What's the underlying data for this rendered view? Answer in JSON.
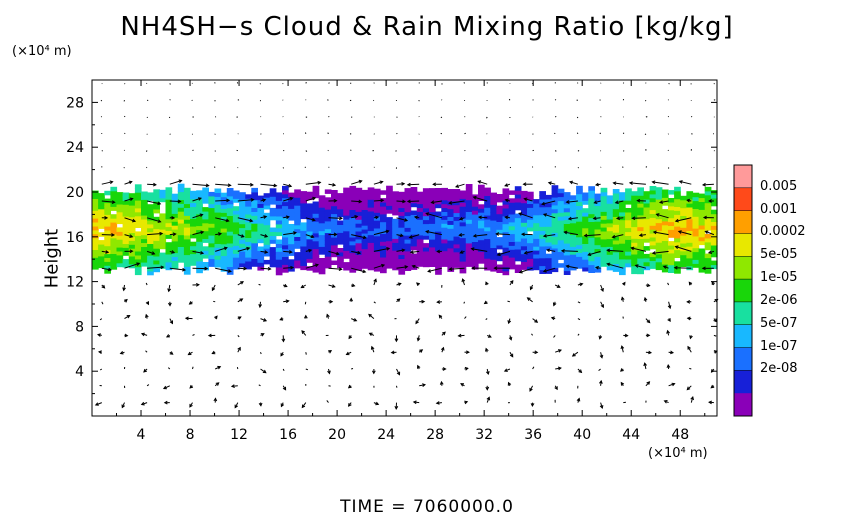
{
  "chart_data": {
    "type": "heatmap",
    "title": "NH4SH−s Cloud & Rain Mixing Ratio [kg/kg]",
    "ylabel": "Height",
    "y_unit": "(×10⁴ m)",
    "x_unit": "(×10⁴ m)",
    "xlim": [
      0,
      51
    ],
    "ylim": [
      0,
      30
    ],
    "xticks": [
      "4",
      "8",
      "12",
      "16",
      "20",
      "24",
      "28",
      "32",
      "36",
      "40",
      "44",
      "48"
    ],
    "yticks": [
      "4",
      "8",
      "12",
      "16",
      "20",
      "24",
      "28"
    ],
    "colorbar": {
      "labels": [
        "0.005",
        "0.001",
        "0.0002",
        "5e-05",
        "1e-05",
        "2e-06",
        "5e-07",
        "1e-07",
        "2e-08"
      ],
      "colors": [
        "#ff9a9a",
        "#ff4a1a",
        "#ff9f00",
        "#e8e800",
        "#8fe800",
        "#19d60a",
        "#18e0a0",
        "#18b8ff",
        "#1a70ff",
        "#1720d8",
        "#8a00b8"
      ]
    },
    "cloud_layer": {
      "base_height": 13,
      "top_height": 20,
      "peak_log10_mixing_ratio_by_x": [
        [
          0,
          -3.0
        ],
        [
          2,
          -3.2
        ],
        [
          4,
          -3.6
        ],
        [
          6,
          -4.0
        ],
        [
          8,
          -4.3
        ],
        [
          10,
          -4.6
        ],
        [
          12,
          -5.1
        ],
        [
          14,
          -5.6
        ],
        [
          16,
          -6.2
        ],
        [
          18,
          -6.7
        ],
        [
          20,
          -6.9
        ],
        [
          22,
          -7.0
        ],
        [
          24,
          -7.0
        ],
        [
          26,
          -6.9
        ],
        [
          28,
          -6.9
        ],
        [
          30,
          -6.8
        ],
        [
          32,
          -6.6
        ],
        [
          34,
          -6.4
        ],
        [
          36,
          -5.8
        ],
        [
          38,
          -5.3
        ],
        [
          40,
          -4.8
        ],
        [
          42,
          -4.2
        ],
        [
          44,
          -3.6
        ],
        [
          46,
          -3.3
        ],
        [
          48,
          -3.0
        ],
        [
          50,
          -3.3
        ],
        [
          51,
          -3.5
        ]
      ]
    },
    "wind_vectors": "shown as arrows on a regular grid"
  },
  "footer": {
    "time_label": "TIME  =  7060000.0"
  }
}
